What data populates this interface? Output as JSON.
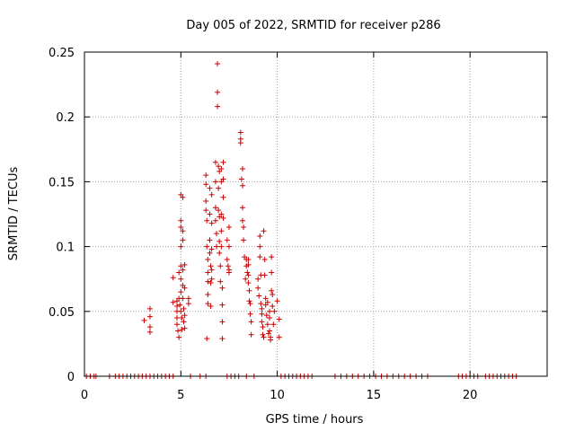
{
  "chart_data": {
    "type": "scatter",
    "title": "Day 005 of 2022, SRMTID for receiver p286",
    "xlabel": "GPS time / hours",
    "ylabel": "SRMTID / TECUs",
    "xlim": [
      0,
      24
    ],
    "ylim": [
      0,
      0.25
    ],
    "xticks": [
      0,
      5,
      10,
      15,
      20
    ],
    "yticks": [
      0,
      0.05,
      0.1,
      0.15,
      0.2,
      0.25
    ],
    "xtick_labels": [
      "0",
      "5",
      "10",
      "15",
      "20"
    ],
    "ytick_labels": [
      "0",
      "0.05",
      "0.1",
      "0.15",
      "0.2",
      "0.25"
    ],
    "grid": true,
    "marker": "+",
    "color": "#cc0000",
    "series": [
      {
        "name": "SRMTID",
        "points": [
          [
            0.1,
            0
          ],
          [
            0.3,
            0
          ],
          [
            0.5,
            0
          ],
          [
            0.6,
            0
          ],
          [
            1.3,
            0
          ],
          [
            1.6,
            0
          ],
          [
            1.8,
            0
          ],
          [
            2.0,
            0
          ],
          [
            2.2,
            0
          ],
          [
            2.4,
            0
          ],
          [
            2.6,
            0
          ],
          [
            2.8,
            0
          ],
          [
            3.0,
            0
          ],
          [
            3.2,
            0
          ],
          [
            3.4,
            0
          ],
          [
            3.6,
            0
          ],
          [
            3.8,
            0
          ],
          [
            4.0,
            0
          ],
          [
            4.2,
            0
          ],
          [
            4.4,
            0
          ],
          [
            4.6,
            0
          ],
          [
            5.5,
            0
          ],
          [
            6.0,
            0
          ],
          [
            6.3,
            0
          ],
          [
            7.4,
            0
          ],
          [
            7.6,
            0
          ],
          [
            7.8,
            0
          ],
          [
            8.0,
            0
          ],
          [
            8.4,
            0
          ],
          [
            8.8,
            0
          ],
          [
            10.2,
            0
          ],
          [
            10.4,
            0
          ],
          [
            10.6,
            0
          ],
          [
            10.8,
            0
          ],
          [
            11.0,
            0
          ],
          [
            11.2,
            0
          ],
          [
            11.4,
            0
          ],
          [
            11.6,
            0
          ],
          [
            11.8,
            0
          ],
          [
            13.0,
            0
          ],
          [
            13.3,
            0
          ],
          [
            13.6,
            0
          ],
          [
            13.9,
            0
          ],
          [
            14.2,
            0
          ],
          [
            14.5,
            0
          ],
          [
            14.8,
            0
          ],
          [
            15.1,
            0
          ],
          [
            15.4,
            0
          ],
          [
            15.7,
            0
          ],
          [
            16.0,
            0
          ],
          [
            16.3,
            0
          ],
          [
            16.6,
            0
          ],
          [
            16.9,
            0
          ],
          [
            17.2,
            0
          ],
          [
            17.5,
            0
          ],
          [
            17.8,
            0
          ],
          [
            19.4,
            0
          ],
          [
            19.6,
            0
          ],
          [
            19.8,
            0
          ],
          [
            20.0,
            0
          ],
          [
            20.2,
            0
          ],
          [
            20.4,
            0
          ],
          [
            20.8,
            0
          ],
          [
            21.0,
            0
          ],
          [
            21.2,
            0
          ],
          [
            21.4,
            0
          ],
          [
            21.6,
            0
          ],
          [
            21.8,
            0
          ],
          [
            22.0,
            0
          ],
          [
            22.2,
            0
          ],
          [
            22.4,
            0
          ],
          [
            3.1,
            0.043
          ],
          [
            3.4,
            0.052
          ],
          [
            3.4,
            0.046
          ],
          [
            3.4,
            0.038
          ],
          [
            3.4,
            0.034
          ],
          [
            4.6,
            0.057
          ],
          [
            4.6,
            0.076
          ],
          [
            4.8,
            0.058
          ],
          [
            4.8,
            0.054
          ],
          [
            4.8,
            0.05
          ],
          [
            4.8,
            0.045
          ],
          [
            4.8,
            0.04
          ],
          [
            4.85,
            0.035
          ],
          [
            4.9,
            0.03
          ],
          [
            4.9,
            0.08
          ],
          [
            4.9,
            0.06
          ],
          [
            4.95,
            0.055
          ],
          [
            5.0,
            0.14
          ],
          [
            5.0,
            0.12
          ],
          [
            5.0,
            0.115
          ],
          [
            5.0,
            0.1
          ],
          [
            5.0,
            0.085
          ],
          [
            5.0,
            0.075
          ],
          [
            5.0,
            0.065
          ],
          [
            5.0,
            0.05
          ],
          [
            5.05,
            0.045
          ],
          [
            5.05,
            0.036
          ],
          [
            5.1,
            0.138
          ],
          [
            5.1,
            0.112
          ],
          [
            5.1,
            0.105
          ],
          [
            5.1,
            0.082
          ],
          [
            5.1,
            0.07
          ],
          [
            5.1,
            0.06
          ],
          [
            5.15,
            0.052
          ],
          [
            5.15,
            0.042
          ],
          [
            5.2,
            0.086
          ],
          [
            5.2,
            0.068
          ],
          [
            5.2,
            0.047
          ],
          [
            5.2,
            0.037
          ],
          [
            5.4,
            0.06
          ],
          [
            5.4,
            0.056
          ],
          [
            6.3,
            0.155
          ],
          [
            6.3,
            0.148
          ],
          [
            6.3,
            0.135
          ],
          [
            6.3,
            0.128
          ],
          [
            6.35,
            0.12
          ],
          [
            6.35,
            0.1
          ],
          [
            6.4,
            0.09
          ],
          [
            6.4,
            0.08
          ],
          [
            6.4,
            0.073
          ],
          [
            6.4,
            0.063
          ],
          [
            6.4,
            0.056
          ],
          [
            6.35,
            0.029
          ],
          [
            6.5,
            0.145
          ],
          [
            6.5,
            0.125
          ],
          [
            6.5,
            0.105
          ],
          [
            6.5,
            0.095
          ],
          [
            6.55,
            0.085
          ],
          [
            6.55,
            0.072
          ],
          [
            6.55,
            0.054
          ],
          [
            6.6,
            0.14
          ],
          [
            6.6,
            0.118
          ],
          [
            6.6,
            0.098
          ],
          [
            6.6,
            0.082
          ],
          [
            6.6,
            0.075
          ],
          [
            6.8,
            0.165
          ],
          [
            6.8,
            0.15
          ],
          [
            6.8,
            0.13
          ],
          [
            6.8,
            0.12
          ],
          [
            6.85,
            0.11
          ],
          [
            6.85,
            0.1
          ],
          [
            6.9,
            0.241
          ],
          [
            6.9,
            0.219
          ],
          [
            6.9,
            0.208
          ],
          [
            6.95,
            0.162
          ],
          [
            6.95,
            0.145
          ],
          [
            6.95,
            0.128
          ],
          [
            7.0,
            0.158
          ],
          [
            7.0,
            0.123
          ],
          [
            7.0,
            0.104
          ],
          [
            7.0,
            0.095
          ],
          [
            7.05,
            0.085
          ],
          [
            7.05,
            0.073
          ],
          [
            7.1,
            0.16
          ],
          [
            7.1,
            0.15
          ],
          [
            7.1,
            0.125
          ],
          [
            7.1,
            0.112
          ],
          [
            7.1,
            0.1
          ],
          [
            7.15,
            0.068
          ],
          [
            7.15,
            0.055
          ],
          [
            7.15,
            0.042
          ],
          [
            7.15,
            0.029
          ],
          [
            7.2,
            0.165
          ],
          [
            7.2,
            0.152
          ],
          [
            7.2,
            0.138
          ],
          [
            7.2,
            0.122
          ],
          [
            7.4,
            0.105
          ],
          [
            7.4,
            0.09
          ],
          [
            7.45,
            0.085
          ],
          [
            7.5,
            0.115
          ],
          [
            7.5,
            0.1
          ],
          [
            7.5,
            0.082
          ],
          [
            7.5,
            0.08
          ],
          [
            8.1,
            0.188
          ],
          [
            8.1,
            0.183
          ],
          [
            8.1,
            0.18
          ],
          [
            8.15,
            0.152
          ],
          [
            8.2,
            0.16
          ],
          [
            8.2,
            0.147
          ],
          [
            8.2,
            0.13
          ],
          [
            8.2,
            0.12
          ],
          [
            8.25,
            0.115
          ],
          [
            8.25,
            0.105
          ],
          [
            8.3,
            0.092
          ],
          [
            8.35,
            0.075
          ],
          [
            8.4,
            0.09
          ],
          [
            8.4,
            0.085
          ],
          [
            8.45,
            0.08
          ],
          [
            8.5,
            0.09
          ],
          [
            8.5,
            0.086
          ],
          [
            8.5,
            0.078
          ],
          [
            8.5,
            0.072
          ],
          [
            8.55,
            0.066
          ],
          [
            8.55,
            0.058
          ],
          [
            8.6,
            0.056
          ],
          [
            8.6,
            0.048
          ],
          [
            8.65,
            0.042
          ],
          [
            8.65,
            0.032
          ],
          [
            9.0,
            0.075
          ],
          [
            9.0,
            0.068
          ],
          [
            9.05,
            0.062
          ],
          [
            9.1,
            0.108
          ],
          [
            9.1,
            0.1
          ],
          [
            9.1,
            0.092
          ],
          [
            9.15,
            0.078
          ],
          [
            9.15,
            0.056
          ],
          [
            9.2,
            0.052
          ],
          [
            9.2,
            0.048
          ],
          [
            9.2,
            0.042
          ],
          [
            9.25,
            0.038
          ],
          [
            9.25,
            0.032
          ],
          [
            9.3,
            0.03
          ],
          [
            9.3,
            0.112
          ],
          [
            9.35,
            0.09
          ],
          [
            9.35,
            0.078
          ],
          [
            9.4,
            0.06
          ],
          [
            9.4,
            0.055
          ],
          [
            9.45,
            0.047
          ],
          [
            9.5,
            0.057
          ],
          [
            9.5,
            0.04
          ],
          [
            9.55,
            0.033
          ],
          [
            9.6,
            0.05
          ],
          [
            9.6,
            0.045
          ],
          [
            9.6,
            0.035
          ],
          [
            9.65,
            0.03
          ],
          [
            9.65,
            0.028
          ],
          [
            9.7,
            0.066
          ],
          [
            9.7,
            0.092
          ],
          [
            9.7,
            0.08
          ],
          [
            9.75,
            0.063
          ],
          [
            9.75,
            0.054
          ],
          [
            9.8,
            0.04
          ],
          [
            9.85,
            0.05
          ],
          [
            10.0,
            0.058
          ],
          [
            10.1,
            0.044
          ],
          [
            10.1,
            0.03
          ]
        ]
      }
    ]
  }
}
